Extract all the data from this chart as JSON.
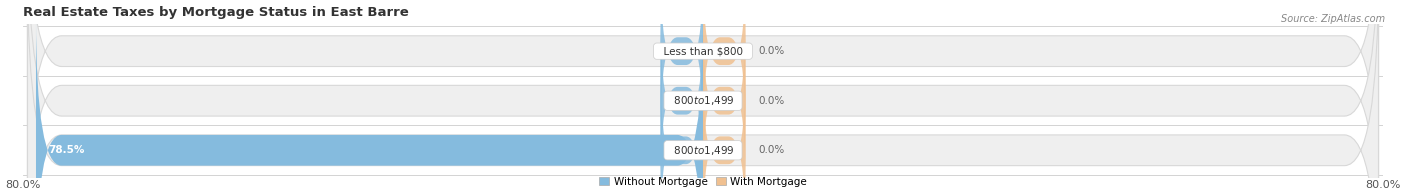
{
  "title": "Real Estate Taxes by Mortgage Status in East Barre",
  "source": "Source: ZipAtlas.com",
  "rows": [
    {
      "label": "Less than $800",
      "without_mortgage": 0.0,
      "with_mortgage": 0.0
    },
    {
      "label": "$800 to $1,499",
      "without_mortgage": 0.0,
      "with_mortgage": 0.0
    },
    {
      "label": "$800 to $1,499",
      "without_mortgage": 78.5,
      "with_mortgage": 0.0
    }
  ],
  "xlim": [
    -80.0,
    80.0
  ],
  "color_without": "#85BBDE",
  "color_with": "#F0C090",
  "bar_height": 0.62,
  "bg_bar": "#EFEFEF",
  "bg_figure": "#FFFFFF",
  "bg_label": "#FFFFFF",
  "title_fontsize": 9.5,
  "label_fontsize": 7.5,
  "tick_fontsize": 8,
  "legend_labels": [
    "Without Mortgage",
    "With Mortgage"
  ],
  "left_tick_label": "80.0%",
  "right_tick_label": "80.0%"
}
